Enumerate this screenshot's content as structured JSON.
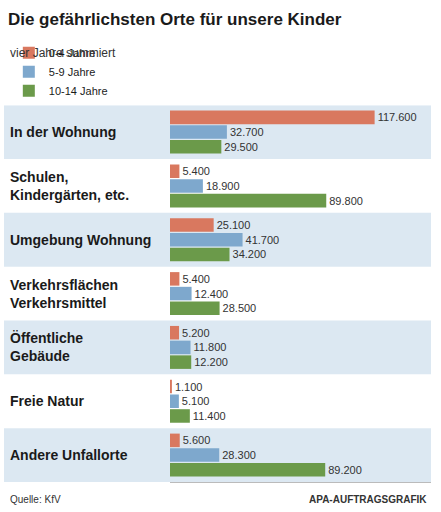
{
  "chart_data": {
    "type": "bar",
    "title": "Die gefährlichsten Orte für unsere Kinder",
    "subtitle": "vier Jahre summiert",
    "orientation": "horizontal",
    "categories": [
      "In der Wohnung",
      "Schulen, Kindergärten, etc.",
      "Umgebung Wohnung",
      "Verkehrsflächen Verkehrsmittel",
      "Öffentliche Gebäude",
      "Freie Natur",
      "Andere Unfallorte"
    ],
    "series": [
      {
        "name": "0-4 Jahre",
        "color": "#d9785f",
        "values": [
          117600,
          5400,
          25100,
          5400,
          5200,
          1100,
          5600
        ],
        "value_labels": [
          "117.600",
          "5.400",
          "25.100",
          "5.400",
          "5.200",
          "1.100",
          "5.600"
        ]
      },
      {
        "name": "5-9 Jahre",
        "color": "#7ea8cd",
        "values": [
          32700,
          18900,
          41700,
          12400,
          11800,
          5100,
          28300
        ],
        "value_labels": [
          "32.700",
          "18.900",
          "41.700",
          "12.400",
          "11.800",
          "5.100",
          "28.300"
        ]
      },
      {
        "name": "10-14 Jahre",
        "color": "#6b9a4a",
        "values": [
          29500,
          89800,
          34200,
          28500,
          12200,
          11400,
          89200
        ],
        "value_labels": [
          "29.500",
          "89.800",
          "34.200",
          "28.500",
          "12.200",
          "11.400",
          "89.200"
        ]
      }
    ],
    "xlim": [
      0,
      150000
    ],
    "tick_labels": false,
    "grid": false,
    "data_labels": true,
    "legend": "top",
    "annotations": [
      "Quelle: KfV",
      "APA-AUFTRAGSGRAFIK"
    ]
  }
}
